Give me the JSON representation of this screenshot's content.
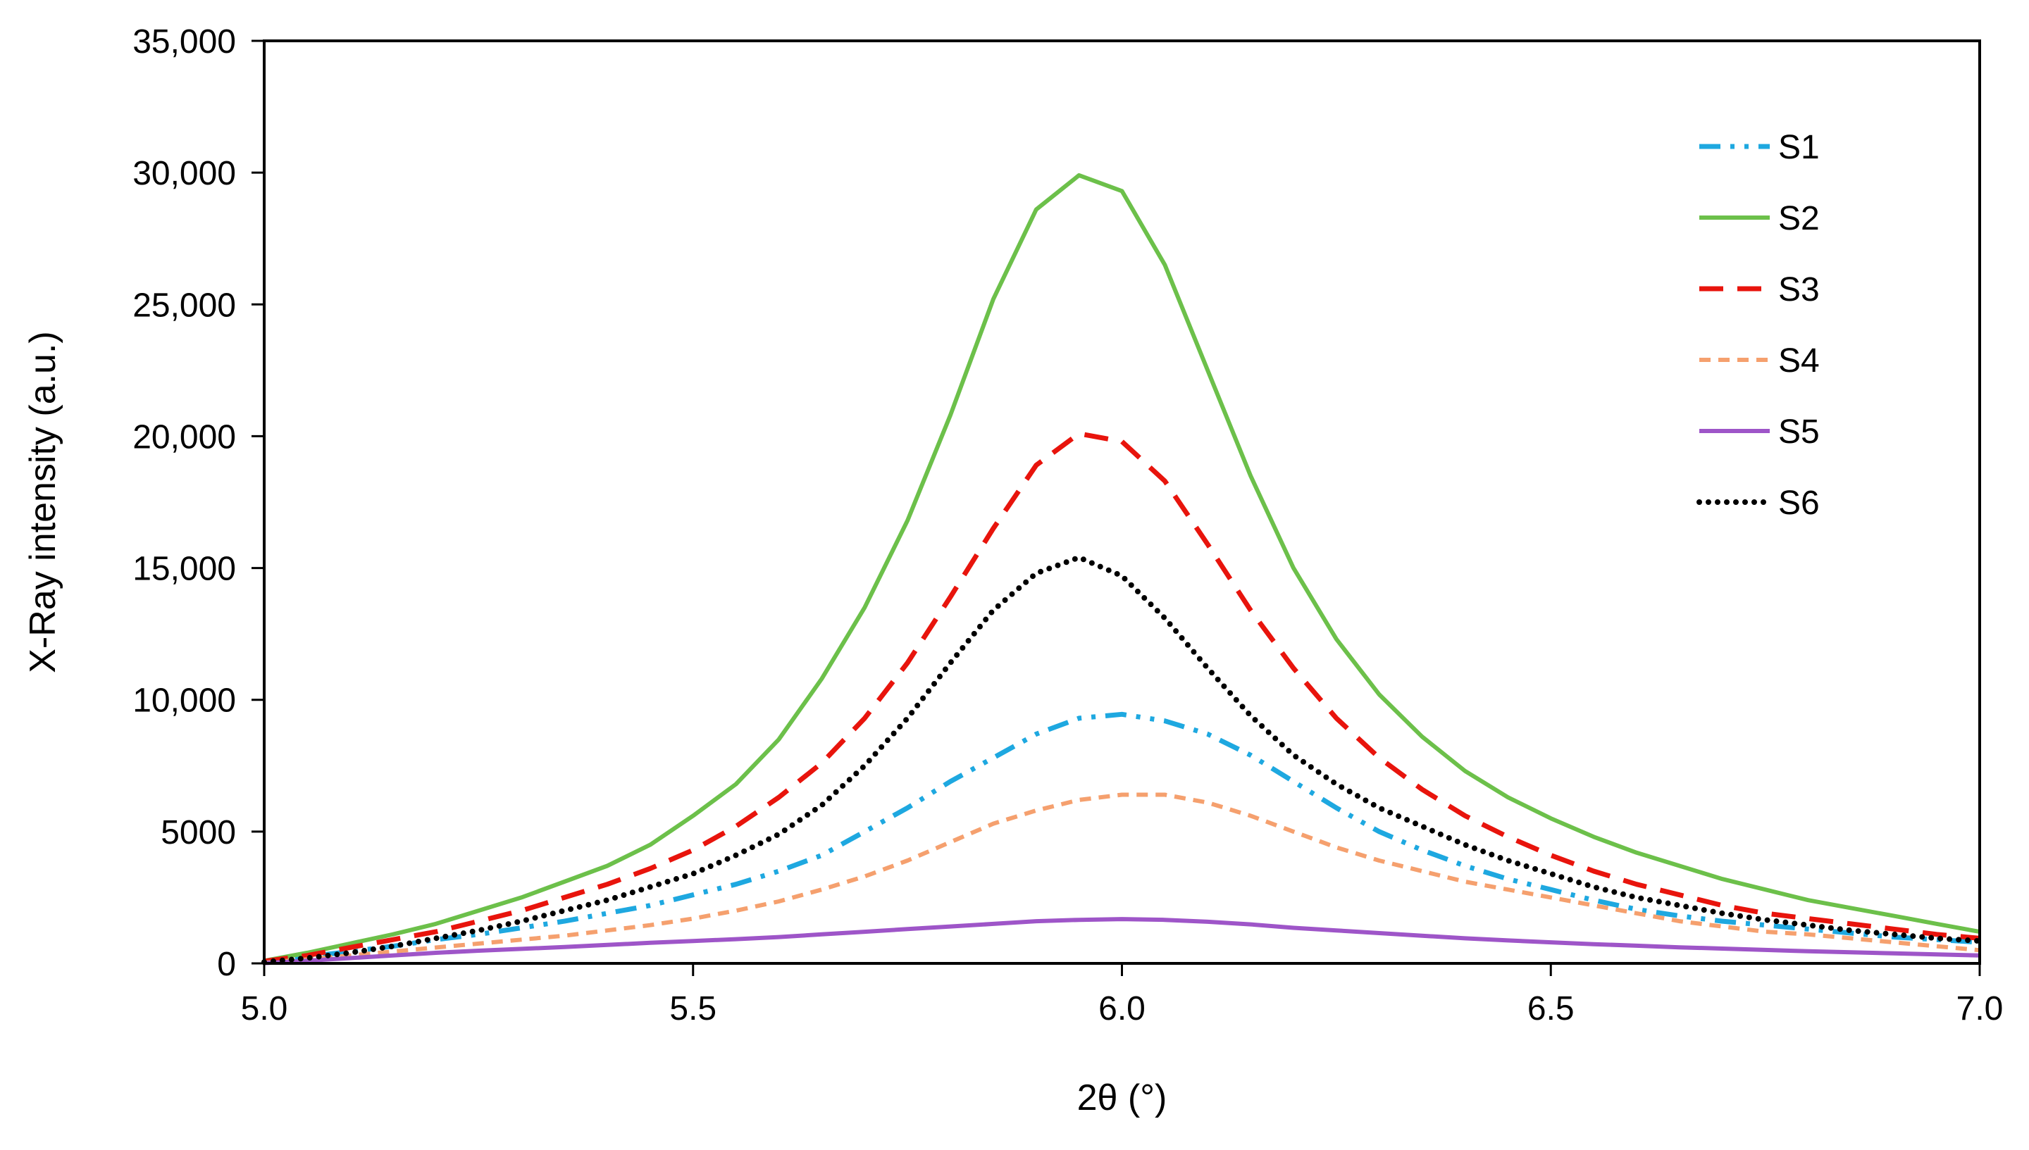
{
  "chart_data": {
    "type": "line",
    "title": "",
    "xlabel": "2θ (°)",
    "ylabel": "X-Ray intensity (a.u.)",
    "xlim": [
      5.0,
      7.0
    ],
    "ylim": [
      0,
      35000
    ],
    "grid": false,
    "legend_position": "top-right",
    "x_ticks": [
      5.0,
      5.5,
      6.0,
      6.5,
      7.0
    ],
    "x_tick_labels": [
      "5.0",
      "5.5",
      "6.0",
      "6.5",
      "7.0"
    ],
    "y_ticks": [
      0,
      5000,
      10000,
      15000,
      20000,
      25000,
      30000,
      35000
    ],
    "y_tick_labels": [
      "0",
      "5000",
      "10,000",
      "15,000",
      "20,000",
      "25,000",
      "30,000",
      "35,000"
    ],
    "x": [
      5.0,
      5.05,
      5.1,
      5.15,
      5.2,
      5.25,
      5.3,
      5.35,
      5.4,
      5.45,
      5.5,
      5.55,
      5.6,
      5.65,
      5.7,
      5.75,
      5.8,
      5.85,
      5.9,
      5.95,
      6.0,
      6.05,
      6.1,
      6.15,
      6.2,
      6.25,
      6.3,
      6.35,
      6.4,
      6.45,
      6.5,
      6.55,
      6.6,
      6.65,
      6.7,
      6.75,
      6.8,
      6.85,
      6.9,
      6.95,
      7.0
    ],
    "series": [
      {
        "name": "S1",
        "color": "#1EA8E0",
        "dash": "dashdotdot",
        "values": [
          50,
          250,
          450,
          650,
          900,
          1100,
          1350,
          1600,
          1900,
          2200,
          2600,
          3000,
          3500,
          4100,
          5000,
          5900,
          6900,
          7800,
          8700,
          9300,
          9450,
          9200,
          8700,
          7900,
          6900,
          5900,
          5000,
          4300,
          3700,
          3200,
          2800,
          2400,
          2050,
          1800,
          1600,
          1450,
          1300,
          1150,
          1000,
          900,
          800
        ]
      },
      {
        "name": "S2",
        "color": "#6CC04A",
        "dash": "solid",
        "values": [
          100,
          400,
          750,
          1100,
          1500,
          2000,
          2500,
          3100,
          3700,
          4500,
          5600,
          6800,
          8500,
          10800,
          13500,
          16800,
          20800,
          25200,
          28600,
          29900,
          29300,
          26500,
          22500,
          18500,
          15000,
          12300,
          10200,
          8600,
          7300,
          6300,
          5500,
          4800,
          4200,
          3700,
          3200,
          2800,
          2400,
          2100,
          1800,
          1500,
          1200
        ]
      },
      {
        "name": "S3",
        "color": "#E8140C",
        "dash": "dash",
        "values": [
          80,
          300,
          600,
          900,
          1200,
          1600,
          2000,
          2500,
          3000,
          3600,
          4300,
          5200,
          6300,
          7600,
          9300,
          11400,
          13900,
          16500,
          18900,
          20100,
          19800,
          18300,
          15900,
          13400,
          11200,
          9300,
          7800,
          6600,
          5600,
          4800,
          4100,
          3500,
          3000,
          2600,
          2200,
          1900,
          1700,
          1500,
          1300,
          1100,
          950
        ]
      },
      {
        "name": "S4",
        "color": "#F5A06E",
        "dash": "shortdash",
        "values": [
          30,
          150,
          300,
          450,
          600,
          750,
          900,
          1050,
          1250,
          1450,
          1700,
          2000,
          2350,
          2800,
          3300,
          3900,
          4600,
          5300,
          5800,
          6200,
          6400,
          6400,
          6100,
          5600,
          5000,
          4400,
          3900,
          3500,
          3100,
          2800,
          2500,
          2200,
          1900,
          1600,
          1400,
          1200,
          1100,
          950,
          800,
          650,
          500
        ]
      },
      {
        "name": "S5",
        "color": "#9E55C8",
        "dash": "solid",
        "values": [
          10,
          100,
          200,
          300,
          400,
          480,
          550,
          620,
          700,
          780,
          850,
          920,
          1000,
          1100,
          1200,
          1300,
          1400,
          1500,
          1600,
          1650,
          1680,
          1650,
          1580,
          1480,
          1350,
          1250,
          1150,
          1050,
          950,
          870,
          800,
          730,
          670,
          610,
          560,
          510,
          460,
          420,
          380,
          340,
          300
        ]
      },
      {
        "name": "S6",
        "color": "#000000",
        "dash": "dot",
        "values": [
          50,
          200,
          400,
          650,
          950,
          1250,
          1600,
          2000,
          2400,
          2900,
          3400,
          4100,
          4900,
          6000,
          7500,
          9300,
          11400,
          13400,
          14800,
          15400,
          14700,
          13100,
          11200,
          9400,
          7900,
          6800,
          5900,
          5200,
          4500,
          3900,
          3400,
          2900,
          2500,
          2200,
          1900,
          1650,
          1450,
          1250,
          1100,
          950,
          850
        ]
      }
    ]
  }
}
